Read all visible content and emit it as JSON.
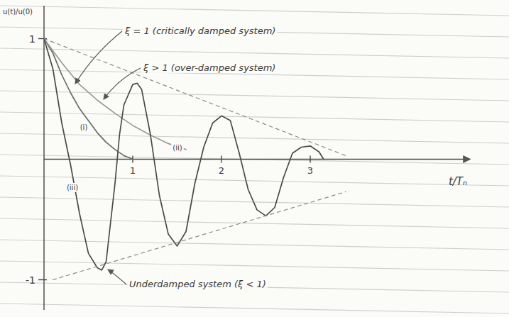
{
  "chart_data": {
    "type": "line",
    "x_label": "t/Tₙ",
    "y_label": "u(t)/u(0)",
    "xlim": [
      0,
      4.8
    ],
    "ylim": [
      -1.25,
      1.25
    ],
    "xticks": [
      1,
      2,
      3
    ],
    "yticks": [
      1,
      {
        "value": -1,
        "label": "-1"
      }
    ],
    "grid": false,
    "annotations": [
      {
        "text": "ξ = 1 (critically damped system)"
      },
      {
        "text": "ξ > 1 (over-damped system)"
      },
      {
        "text": "Underdamped system (ξ < 1)"
      }
    ],
    "series": [
      {
        "name": "(i)",
        "color": "#6a6a6a",
        "line_style": "solid",
        "x": [
          0,
          0.1,
          0.2,
          0.3,
          0.4,
          0.5,
          0.6,
          0.7,
          0.8,
          0.9,
          1.0
        ],
        "values": [
          1,
          0.88,
          0.7,
          0.55,
          0.42,
          0.32,
          0.22,
          0.14,
          0.08,
          0.03,
          0.0
        ]
      },
      {
        "name": "(ii)",
        "color": "#9a9a9a",
        "line_style": "solid",
        "x": [
          0,
          0.2,
          0.4,
          0.6,
          0.8,
          1.0,
          1.2,
          1.4,
          1.6
        ],
        "values": [
          1,
          0.8,
          0.62,
          0.49,
          0.38,
          0.28,
          0.2,
          0.13,
          0.08
        ]
      },
      {
        "name": "(iii)",
        "color": "#4a4a4a",
        "line_style": "solid",
        "x": [
          0,
          0.1,
          0.2,
          0.3,
          0.4,
          0.5,
          0.6,
          0.65,
          0.7,
          0.8,
          0.85,
          0.9,
          1.0,
          1.05,
          1.1,
          1.2,
          1.3,
          1.4,
          1.5,
          1.6,
          1.7,
          1.8,
          1.9,
          2.0,
          2.1,
          2.2,
          2.3,
          2.4,
          2.5,
          2.6,
          2.7,
          2.8,
          2.9,
          3.0,
          3.1,
          3.15
        ],
        "values": [
          1,
          0.75,
          0.3,
          -0.05,
          -0.45,
          -0.78,
          -0.9,
          -0.92,
          -0.85,
          -0.2,
          0.2,
          0.45,
          0.62,
          0.63,
          0.58,
          0.2,
          -0.3,
          -0.62,
          -0.72,
          -0.6,
          -0.2,
          0.1,
          0.3,
          0.36,
          0.32,
          0.05,
          -0.25,
          -0.42,
          -0.47,
          -0.4,
          -0.15,
          0.05,
          0.1,
          0.11,
          0.06,
          0.0
        ]
      },
      {
        "color": "#8a8a8a",
        "line_style": "dashed",
        "x": [
          0,
          3.4
        ],
        "values": [
          1,
          0.03
        ]
      },
      {
        "color": "#8a8a8a",
        "line_style": "dashed",
        "x": [
          0.1,
          3.4
        ],
        "values": [
          -1,
          -0.27
        ]
      }
    ]
  }
}
